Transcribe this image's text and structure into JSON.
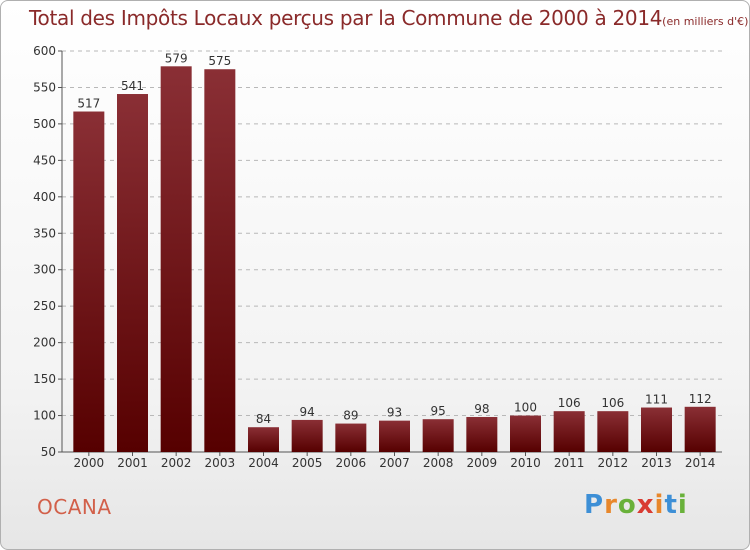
{
  "title": "Total des Impôts Locaux perçus par la Commune de 2000 à 2014",
  "unit": "(en milliers d'€)",
  "commune": "OCANA",
  "logo": {
    "letters": [
      "P",
      "r",
      "o",
      "x",
      "i",
      "t",
      "i"
    ],
    "colors": [
      "#3d8fd6",
      "#e8872b",
      "#69b13a",
      "#d93b32",
      "#e8872b",
      "#3d8fd6",
      "#69b13a"
    ]
  },
  "colors": {
    "bar_top": "#8a2f35",
    "bar_bottom": "#560000",
    "title": "#8a2a2a",
    "grid": "#b8b8b8"
  },
  "chart_data": {
    "type": "bar",
    "title": "Total des Impôts Locaux perçus par la Commune de 2000 à 2014",
    "xlabel": "",
    "ylabel": "",
    "categories": [
      "2000",
      "2001",
      "2002",
      "2003",
      "2004",
      "2005",
      "2006",
      "2007",
      "2008",
      "2009",
      "2010",
      "2011",
      "2012",
      "2013",
      "2014"
    ],
    "values": [
      517,
      541,
      579,
      575,
      84,
      94,
      89,
      93,
      95,
      98,
      100,
      106,
      106,
      111,
      112
    ],
    "ylim": [
      50,
      600
    ],
    "yticks": [
      50,
      100,
      150,
      200,
      250,
      300,
      350,
      400,
      450,
      500,
      550,
      600
    ],
    "grid": true
  }
}
